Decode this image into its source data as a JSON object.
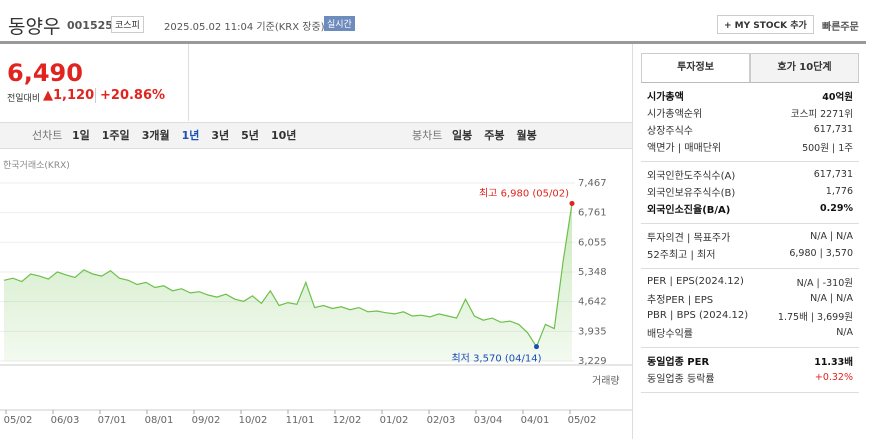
{
  "header": {
    "name": "동양우",
    "code": "001525",
    "market": "코스피",
    "datetime": "2025.05.02 11:04 기준(KRX 장중)",
    "realtime": "실시간",
    "mystock": "+ MY STOCK 추가",
    "quick_order": "빠른주문"
  },
  "price": {
    "current": "6,490",
    "change_label": "전일대비",
    "change": "▲1,120",
    "change_rate": "+20.86%"
  },
  "tabs": {
    "line_label": "선차트",
    "line": [
      "1일",
      "1주일",
      "3개월",
      "1년",
      "3년",
      "5년",
      "10년"
    ],
    "selected_index": 3,
    "candle_label": "봉차트",
    "candle": [
      "일봉",
      "주봉",
      "월봉"
    ]
  },
  "source": "한국거래소(KRX)",
  "chart_data": {
    "type": "line",
    "color": "#6cc04a",
    "values": [
      5150,
      5200,
      5120,
      5300,
      5250,
      5180,
      5350,
      5280,
      5220,
      5400,
      5300,
      5250,
      5380,
      5200,
      5150,
      5050,
      5100,
      4980,
      5020,
      4900,
      4950,
      4850,
      4880,
      4800,
      4750,
      4820,
      4700,
      4650,
      4780,
      4600,
      4900,
      4550,
      4620,
      4580,
      5100,
      4500,
      4550,
      4480,
      4520,
      4450,
      4500,
      4400,
      4420,
      4380,
      4350,
      4400,
      4300,
      4320,
      4280,
      4350,
      4300,
      4250,
      4700,
      4300,
      4200,
      4250,
      4150,
      4180,
      4100,
      3900,
      3570,
      4100,
      4000,
      5600,
      6980
    ],
    "ylim": [
      3229,
      7467
    ],
    "yticks": [
      {
        "value": 3229,
        "label": "3,229"
      },
      {
        "value": 3935,
        "label": "3,935"
      },
      {
        "value": 4642,
        "label": "4,642"
      },
      {
        "value": 5348,
        "label": "5,348"
      },
      {
        "value": 6055,
        "label": "6,055"
      },
      {
        "value": 6761,
        "label": "6,761"
      },
      {
        "value": 7467,
        "label": "7,467"
      }
    ],
    "x_labels": [
      "05/02",
      "06/03",
      "07/01",
      "08/01",
      "09/02",
      "10/02",
      "11/01",
      "12/02",
      "01/02",
      "02/03",
      "03/04",
      "04/01",
      "05/02"
    ],
    "high_label": "최고 6,980 (05/02)",
    "low_label": "최저 3,570 (04/14)",
    "volume_label": "거래량"
  },
  "panel": {
    "tabs": [
      "투자정보",
      "호가 10단계"
    ],
    "sections": [
      [
        {
          "label": "시가총액",
          "value": "40억원",
          "bold": true
        },
        {
          "label": "시가총액순위",
          "value": "코스피 2271위"
        },
        {
          "label": "상장주식수",
          "value": "617,731"
        },
        {
          "label": "액면가 | 매매단위",
          "value": "500원 | 1주"
        }
      ],
      [
        {
          "label": "외국인한도주식수(A)",
          "value": "617,731"
        },
        {
          "label": "외국인보유주식수(B)",
          "value": "1,776"
        },
        {
          "label": "외국인소진율(B/A)",
          "value": "0.29%",
          "bold": true
        }
      ],
      [
        {
          "label": "투자의견 | 목표주가",
          "value": "N/A | N/A"
        },
        {
          "label": "52주최고 | 최저",
          "value": "6,980 | 3,570"
        }
      ],
      [
        {
          "label": "PER | EPS(2024.12)",
          "value": "N/A | -310원"
        },
        {
          "label": "추정PER | EPS",
          "value": "N/A | N/A"
        },
        {
          "label": "PBR | BPS (2024.12)",
          "value": "1.75배 | 3,699원"
        },
        {
          "label": "배당수익률",
          "value": "N/A"
        }
      ],
      [
        {
          "label": "동일업종 PER",
          "value": "11.33배",
          "bold": true
        },
        {
          "label": "동일업종 등락률",
          "value": "+0.32%",
          "color": "#e0241f"
        }
      ]
    ]
  }
}
